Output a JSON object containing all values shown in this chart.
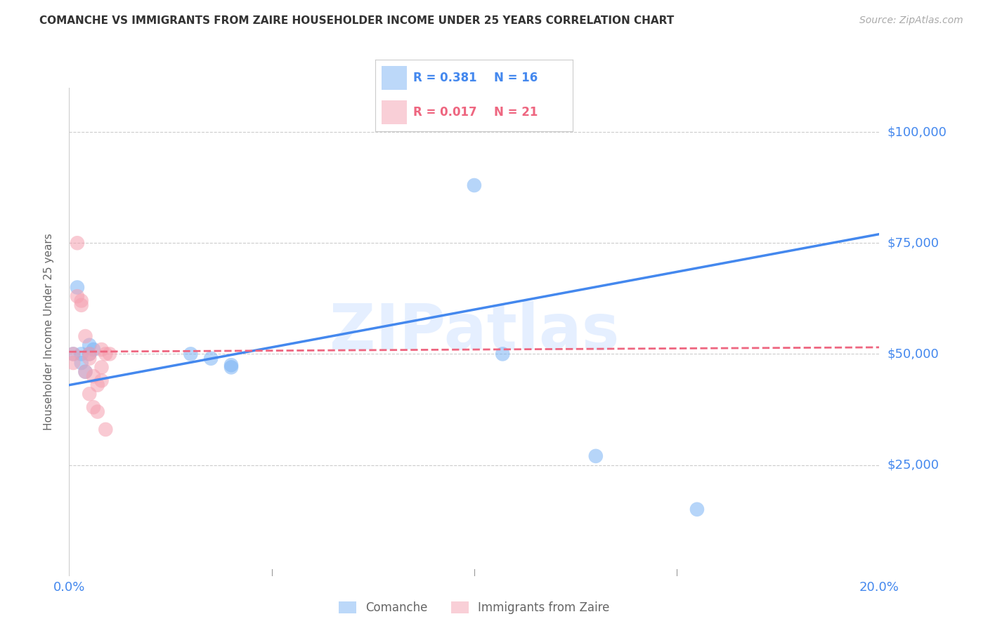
{
  "title": "COMANCHE VS IMMIGRANTS FROM ZAIRE HOUSEHOLDER INCOME UNDER 25 YEARS CORRELATION CHART",
  "source": "Source: ZipAtlas.com",
  "ylabel": "Householder Income Under 25 years",
  "watermark": "ZIPatlas",
  "xlim": [
    0.0,
    0.2
  ],
  "ylim": [
    0,
    110000
  ],
  "grid_color": "#cccccc",
  "background_color": "#ffffff",
  "comanche_color": "#7ab3f5",
  "zaire_color": "#f5a0b0",
  "comanche_R": 0.381,
  "comanche_N": 16,
  "zaire_R": 0.017,
  "zaire_N": 21,
  "comanche_line_color": "#4488ee",
  "zaire_line_color": "#ee6680",
  "axis_color": "#4488ee",
  "comanche_x": [
    0.001,
    0.002,
    0.003,
    0.003,
    0.004,
    0.005,
    0.005,
    0.006,
    0.03,
    0.035,
    0.04,
    0.04,
    0.1,
    0.107,
    0.13,
    0.155
  ],
  "comanche_y": [
    50000,
    65000,
    50000,
    48000,
    46000,
    52000,
    50000,
    51000,
    50000,
    49000,
    47000,
    47500,
    88000,
    50000,
    27000,
    15000
  ],
  "zaire_x": [
    0.001,
    0.001,
    0.002,
    0.002,
    0.003,
    0.003,
    0.004,
    0.004,
    0.005,
    0.005,
    0.005,
    0.006,
    0.006,
    0.007,
    0.007,
    0.008,
    0.008,
    0.008,
    0.009,
    0.009,
    0.01
  ],
  "zaire_y": [
    50000,
    48000,
    75000,
    63000,
    62000,
    61000,
    54000,
    46000,
    50000,
    49000,
    41000,
    45000,
    38000,
    37000,
    43000,
    51000,
    47000,
    44000,
    33000,
    50000,
    50000
  ]
}
